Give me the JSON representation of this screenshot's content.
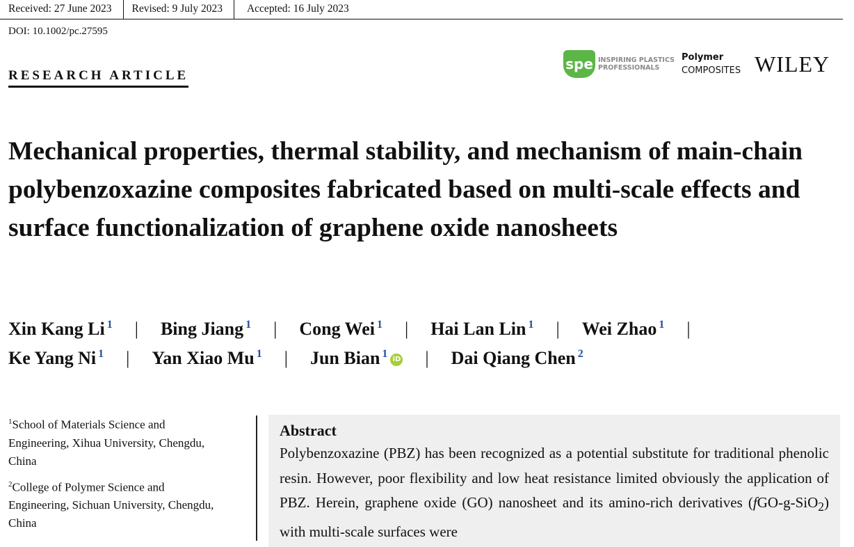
{
  "header": {
    "received": "Received: 27 June 2023",
    "revised": "Revised: 9 July 2023",
    "accepted": "Accepted: 16 July 2023",
    "doi": "DOI: 10.1002/pc.27595",
    "article_type": "RESEARCH ARTICLE"
  },
  "logos": {
    "spe_mark": "spe",
    "spe_tagline": "INSPIRING PLASTICS PROFESSIONALS",
    "journal_line1": "Polymer",
    "journal_line2": "COMPOSITES",
    "publisher": "WILEY",
    "spe_color": "#5cb646"
  },
  "title": "Mechanical properties, thermal stability, and mechanism of main-chain polybenzoxazine composites fabricated based on multi-scale effects and surface functionalization of graphene oxide nanosheets",
  "authors": [
    {
      "name": "Xin Kang Li",
      "aff": "1"
    },
    {
      "name": "Bing Jiang",
      "aff": "1"
    },
    {
      "name": "Cong Wei",
      "aff": "1"
    },
    {
      "name": "Hai Lan Lin",
      "aff": "1"
    },
    {
      "name": "Wei Zhao",
      "aff": "1"
    },
    {
      "name": "Ke Yang Ni",
      "aff": "1"
    },
    {
      "name": "Yan Xiao Mu",
      "aff": "1"
    },
    {
      "name": "Jun Bian",
      "aff": "1"
    },
    {
      "name": "Dai Qiang Chen",
      "aff": "2"
    }
  ],
  "separator": "|",
  "orcid_label": "iD",
  "affiliations": [
    {
      "num": "1",
      "text": "School of Materials Science and Engineering, Xihua University, Chengdu, China"
    },
    {
      "num": "2",
      "text": "College of Polymer Science and Engineering, Sichuan University, Chengdu, China"
    }
  ],
  "abstract": {
    "heading": "Abstract",
    "text_before": "Polybenzoxazine (PBZ) has been recognized as a potential substitute for traditional phenolic resin. However, poor flexibility and low heat resistance limited obviously the application of PBZ. Herein, graphene oxide (GO) nanosheet and its amino-rich derivatives (",
    "text_italic": "f",
    "text_mid": "GO-g-SiO",
    "text_sub": "2",
    "text_after": ") with multi-scale surfaces were"
  }
}
